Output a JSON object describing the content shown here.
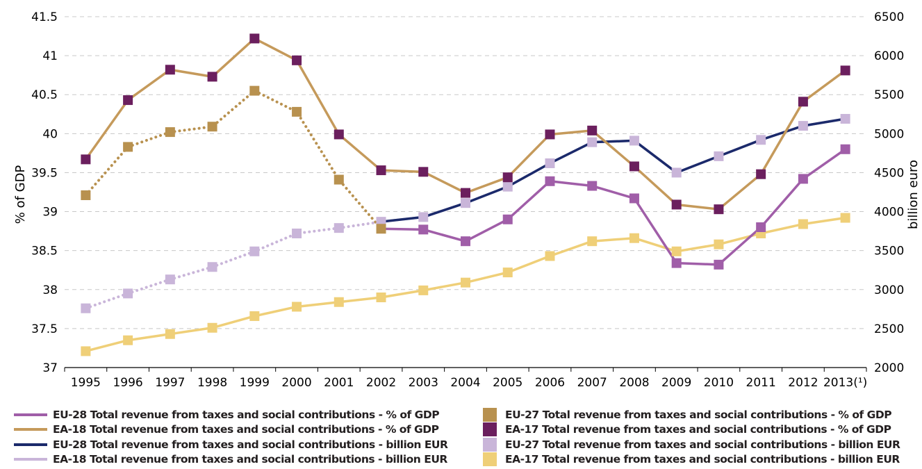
{
  "chart_data": {
    "type": "line",
    "categories": [
      "1995",
      "1996",
      "1997",
      "1998",
      "1999",
      "2000",
      "2001",
      "2002",
      "2003",
      "2004",
      "2005",
      "2006",
      "2007",
      "2008",
      "2009",
      "2010",
      "2011",
      "2012",
      "2013"
    ],
    "x_tick_labels": [
      "1995",
      "1996",
      "1997",
      "1998",
      "1999",
      "2000",
      "2001",
      "2002",
      "2003",
      "2004",
      "2005",
      "2006",
      "2007",
      "2008",
      "2009",
      "2010",
      "2011",
      "2012",
      "2013(¹)"
    ],
    "ylabel": "% of GDP",
    "y2label": "billion euro",
    "ylim": [
      37,
      41.5
    ],
    "y_ticks": [
      "37",
      "37.5",
      "38",
      "38.5",
      "39",
      "39.5",
      "40",
      "40.5",
      "41",
      "41.5"
    ],
    "y2lim": [
      2000,
      6500
    ],
    "y2_ticks": [
      "2000",
      "2500",
      "3000",
      "3500",
      "4000",
      "4500",
      "5000",
      "5500",
      "6000",
      "6500"
    ],
    "grid": "horizontal dashed",
    "legend_position": "bottom",
    "series": [
      {
        "key": "eu28_gdp",
        "name": "EU-28 Total revenue from taxes and social contributions - % of GDP",
        "axis": "left",
        "style": "line",
        "color": "#a05ea8",
        "values": [
          null,
          null,
          null,
          null,
          null,
          null,
          null,
          38.78,
          38.77,
          38.62,
          38.9,
          39.39,
          39.33,
          39.17,
          38.34,
          38.32,
          38.8,
          39.42,
          39.8
        ]
      },
      {
        "key": "ea18_gdp",
        "name": "EA-18 Total revenue from taxes and social contributions - % of GDP",
        "axis": "left",
        "style": "line",
        "color": "#c59a5b",
        "values": [
          39.67,
          40.43,
          40.82,
          40.73,
          41.22,
          40.94,
          39.99,
          39.53,
          39.51,
          39.24,
          39.44,
          39.99,
          40.04,
          39.58,
          39.09,
          39.03,
          39.48,
          40.41,
          40.81
        ]
      },
      {
        "key": "eu28_eur",
        "name": "EU-28 Total revenue from taxes and social contributions - billion EUR",
        "axis": "right",
        "style": "line",
        "color": "#1b2a6b",
        "values": [
          null,
          null,
          null,
          null,
          null,
          null,
          null,
          3870,
          3930,
          4110,
          4320,
          4620,
          4890,
          4910,
          4500,
          4710,
          4920,
          5100,
          5190
        ]
      },
      {
        "key": "ea18_eur",
        "name": "EA-18 Total revenue from taxes and social contributions - billion EUR",
        "axis": "right",
        "style": "line",
        "color": "#c9b5d9",
        "values": [
          null,
          null,
          null,
          null,
          null,
          null,
          null,
          null,
          null,
          null,
          null,
          null,
          null,
          null,
          null,
          null,
          null,
          null,
          null
        ]
      },
      {
        "key": "eu27_gdp",
        "name": "EU-27 Total revenue from taxes and social contributions - % of GDP",
        "axis": "left",
        "style": "dotted-markers",
        "color": "#b8914f",
        "values": [
          39.21,
          39.83,
          40.02,
          40.09,
          40.55,
          40.28,
          39.41,
          38.78,
          null,
          null,
          null,
          null,
          null,
          null,
          null,
          null,
          null,
          null,
          null
        ]
      },
      {
        "key": "ea17_gdp",
        "name": "EA-17 Total revenue from taxes and social contributions - % of GDP",
        "axis": "left",
        "style": "markers",
        "color": "#6b1f5e",
        "values": [
          39.67,
          40.43,
          40.82,
          40.73,
          41.22,
          40.94,
          39.99,
          39.53,
          39.51,
          39.24,
          39.44,
          39.99,
          40.04,
          39.58,
          39.09,
          39.03,
          39.48,
          40.41,
          40.81
        ]
      },
      {
        "key": "eu27_eur",
        "name": "EU-27 Total revenue from taxes and social contributions - billion EUR",
        "axis": "right",
        "style": "dotted-markers",
        "color": "#c9b5d9",
        "values": [
          2760,
          2950,
          3130,
          3290,
          3490,
          3720,
          3790,
          3870,
          3930,
          4110,
          4320,
          4620,
          4890,
          4910,
          4500,
          4710,
          4920,
          5100,
          5190
        ]
      },
      {
        "key": "ea17_eur",
        "name": "EA-17 Total revenue from taxes and social contributions - billion EUR",
        "axis": "right",
        "style": "line-markers",
        "color": "#efcf78",
        "values": [
          2210,
          2350,
          2430,
          2510,
          2660,
          2780,
          2840,
          2900,
          2990,
          3090,
          3220,
          3430,
          3620,
          3660,
          3490,
          3580,
          3720,
          3840,
          3920
        ]
      }
    ]
  },
  "legend": [
    {
      "label": "EU-28 Total revenue from taxes and social contributions - % of GDP",
      "color": "#a05ea8",
      "kind": "line"
    },
    {
      "label": "EU-27 Total revenue from taxes and social contributions - % of GDP",
      "color": "#b8914f",
      "kind": "box"
    },
    {
      "label": "EA-18 Total revenue from taxes and social contributions - % of GDP",
      "color": "#c59a5b",
      "kind": "line"
    },
    {
      "label": "EA-17 Total revenue from taxes and social contributions - % of GDP",
      "color": "#6b1f5e",
      "kind": "box"
    },
    {
      "label": "EU-28 Total revenue from taxes and social contributions - billion EUR",
      "color": "#1b2a6b",
      "kind": "line"
    },
    {
      "label": "EU-27 Total revenue from taxes and social contributions - billion EUR",
      "color": "#c9b5d9",
      "kind": "box"
    },
    {
      "label": "EA-18 Total revenue from taxes and social contributions - billion EUR",
      "color": "#c9b5d9",
      "kind": "line"
    },
    {
      "label": "EA-17 Total revenue from taxes and social contributions - billion EUR",
      "color": "#efcf78",
      "kind": "box"
    }
  ]
}
